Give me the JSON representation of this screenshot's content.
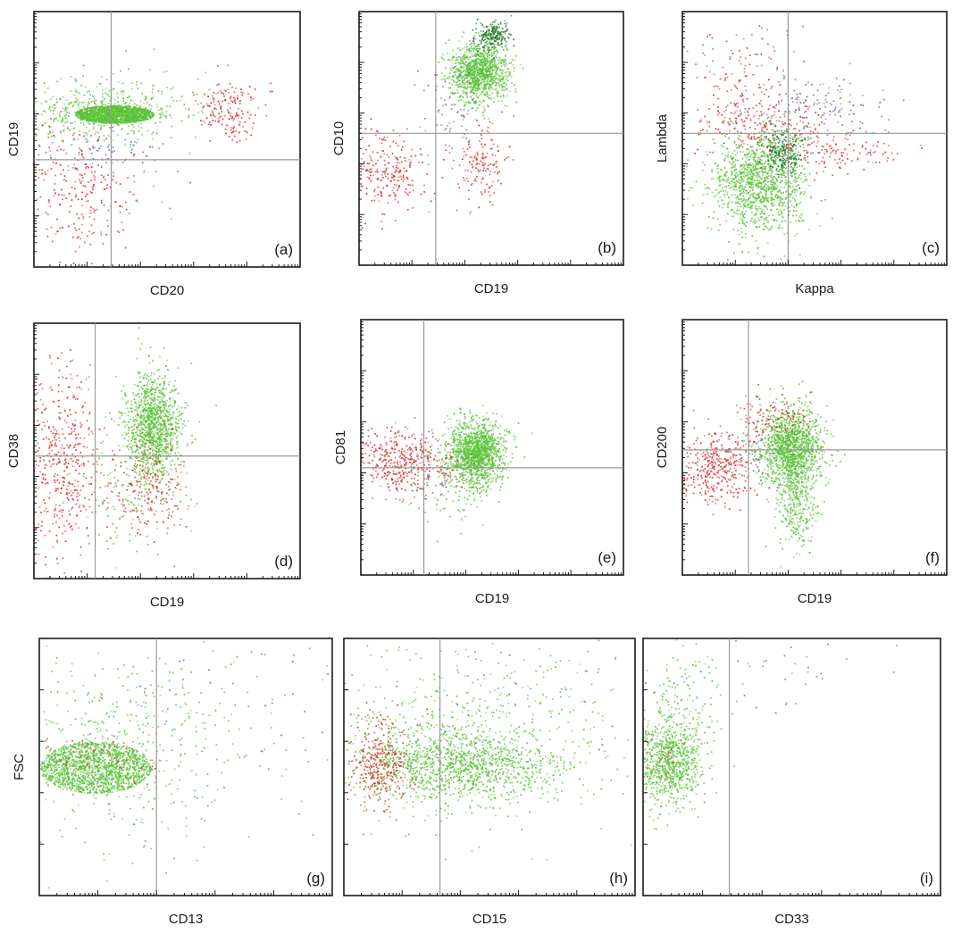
{
  "figure": {
    "colors": {
      "green": "#5cc33a",
      "dark_green": "#1f7d2c",
      "red": "#d8312e",
      "blue_violet": "#6a6aa6",
      "gate_line": "#9a9a9a"
    }
  },
  "chart_data": [
    {
      "id": "a",
      "type": "scatter",
      "panel_label": "(a)",
      "xlabel": "CD20",
      "ylabel": "CD19",
      "x_scale": "log",
      "y_scale": "log",
      "xlim": [
        0,
        1
      ],
      "ylim": [
        0,
        1
      ],
      "gate": {
        "x": 0.29,
        "y": 0.42
      },
      "populations": [
        {
          "color": "green",
          "n": 1500,
          "cx": 0.3,
          "cy": 0.6,
          "sx": 0.15,
          "sy": 0.035,
          "mode": "uniform"
        },
        {
          "color": "green",
          "n": 500,
          "cx": 0.27,
          "cy": 0.62,
          "sx": 0.15,
          "sy": 0.06,
          "mode": "normal"
        },
        {
          "color": "red",
          "n": 170,
          "cx": 0.72,
          "cy": 0.62,
          "sx": 0.06,
          "sy": 0.06,
          "mode": "normal"
        },
        {
          "color": "red",
          "n": 300,
          "cx": 0.15,
          "cy": 0.3,
          "sx": 0.14,
          "sy": 0.13,
          "mode": "normal"
        },
        {
          "color": "blue_violet",
          "n": 60,
          "cx": 0.25,
          "cy": 0.46,
          "sx": 0.1,
          "sy": 0.05,
          "mode": "normal"
        }
      ]
    },
    {
      "id": "b",
      "type": "scatter",
      "panel_label": "(b)",
      "xlabel": "CD19",
      "ylabel": "CD10",
      "x_scale": "log",
      "y_scale": "log",
      "xlim": [
        0,
        1
      ],
      "ylim": [
        0,
        1
      ],
      "gate": {
        "x": 0.29,
        "y": 0.52
      },
      "populations": [
        {
          "color": "green",
          "n": 1100,
          "cx": 0.45,
          "cy": 0.76,
          "sx": 0.055,
          "sy": 0.055,
          "mode": "normal"
        },
        {
          "color": "dark_green",
          "n": 220,
          "cx": 0.5,
          "cy": 0.91,
          "sx": 0.03,
          "sy": 0.03,
          "mode": "normal"
        },
        {
          "color": "red",
          "n": 260,
          "cx": 0.1,
          "cy": 0.38,
          "sx": 0.09,
          "sy": 0.08,
          "mode": "normal"
        },
        {
          "color": "red",
          "n": 140,
          "cx": 0.46,
          "cy": 0.4,
          "sx": 0.05,
          "sy": 0.07,
          "mode": "normal"
        },
        {
          "color": "blue_violet",
          "n": 70,
          "cx": 0.35,
          "cy": 0.62,
          "sx": 0.08,
          "sy": 0.12,
          "mode": "normal"
        }
      ]
    },
    {
      "id": "c",
      "type": "scatter",
      "panel_label": "(c)",
      "xlabel": "Kappa",
      "ylabel": "Lambda",
      "x_scale": "log",
      "y_scale": "log",
      "xlim": [
        0,
        1
      ],
      "ylim": [
        0,
        1
      ],
      "gate": {
        "x": 0.4,
        "y": 0.52
      },
      "populations": [
        {
          "color": "green",
          "n": 1200,
          "cx": 0.29,
          "cy": 0.33,
          "sx": 0.09,
          "sy": 0.1,
          "mode": "normal"
        },
        {
          "color": "dark_green",
          "n": 250,
          "cx": 0.38,
          "cy": 0.45,
          "sx": 0.04,
          "sy": 0.05,
          "mode": "normal"
        },
        {
          "color": "red",
          "n": 200,
          "cx": 0.3,
          "cy": 0.55,
          "sx": 0.15,
          "sy": 0.05,
          "mode": "normal"
        },
        {
          "color": "red",
          "n": 150,
          "cx": 0.22,
          "cy": 0.72,
          "sx": 0.12,
          "sy": 0.12,
          "mode": "normal"
        },
        {
          "color": "red",
          "n": 100,
          "cx": 0.62,
          "cy": 0.44,
          "sx": 0.1,
          "sy": 0.04,
          "mode": "normal"
        },
        {
          "color": "blue_violet",
          "n": 120,
          "cx": 0.52,
          "cy": 0.64,
          "sx": 0.12,
          "sy": 0.05,
          "mode": "normal"
        }
      ]
    },
    {
      "id": "d",
      "type": "scatter",
      "panel_label": "(d)",
      "xlabel": "CD19",
      "ylabel": "CD38",
      "x_scale": "log",
      "y_scale": "log",
      "xlim": [
        0,
        1
      ],
      "ylim": [
        0,
        1
      ],
      "gate": {
        "x": 0.23,
        "y": 0.48
      },
      "populations": [
        {
          "color": "green",
          "n": 1100,
          "cx": 0.45,
          "cy": 0.6,
          "sx": 0.05,
          "sy": 0.1,
          "mode": "normal"
        },
        {
          "color": "green",
          "n": 200,
          "cx": 0.4,
          "cy": 0.45,
          "sx": 0.1,
          "sy": 0.15,
          "mode": "normal"
        },
        {
          "color": "red",
          "n": 420,
          "cx": 0.1,
          "cy": 0.45,
          "sx": 0.07,
          "sy": 0.18,
          "mode": "normal"
        },
        {
          "color": "red",
          "n": 220,
          "cx": 0.42,
          "cy": 0.35,
          "sx": 0.07,
          "sy": 0.1,
          "mode": "normal"
        }
      ]
    },
    {
      "id": "e",
      "type": "scatter",
      "panel_label": "(e)",
      "xlabel": "CD19",
      "ylabel": "CD81",
      "x_scale": "log",
      "y_scale": "log",
      "xlim": [
        0,
        1
      ],
      "ylim": [
        0,
        1
      ],
      "gate": {
        "x": 0.24,
        "y": 0.42
      },
      "populations": [
        {
          "color": "green",
          "n": 1300,
          "cx": 0.44,
          "cy": 0.48,
          "sx": 0.05,
          "sy": 0.06,
          "mode": "normal"
        },
        {
          "color": "green",
          "n": 200,
          "cx": 0.38,
          "cy": 0.42,
          "sx": 0.1,
          "sy": 0.1,
          "mode": "normal"
        },
        {
          "color": "red",
          "n": 380,
          "cx": 0.15,
          "cy": 0.45,
          "sx": 0.09,
          "sy": 0.06,
          "mode": "normal"
        },
        {
          "color": "blue_violet",
          "n": 60,
          "cx": 0.25,
          "cy": 0.42,
          "sx": 0.08,
          "sy": 0.08,
          "mode": "normal"
        }
      ]
    },
    {
      "id": "f",
      "type": "scatter",
      "panel_label": "(f)",
      "xlabel": "CD19",
      "ylabel": "CD200",
      "x_scale": "log",
      "y_scale": "log",
      "xlim": [
        0,
        1
      ],
      "ylim": [
        0,
        1
      ],
      "gate": {
        "x": 0.25,
        "y": 0.49
      },
      "populations": [
        {
          "color": "green",
          "n": 1300,
          "cx": 0.41,
          "cy": 0.5,
          "sx": 0.06,
          "sy": 0.08,
          "mode": "normal"
        },
        {
          "color": "green",
          "n": 350,
          "cx": 0.43,
          "cy": 0.32,
          "sx": 0.04,
          "sy": 0.1,
          "mode": "normal"
        },
        {
          "color": "red",
          "n": 350,
          "cx": 0.13,
          "cy": 0.42,
          "sx": 0.07,
          "sy": 0.07,
          "mode": "normal"
        },
        {
          "color": "red",
          "n": 100,
          "cx": 0.35,
          "cy": 0.62,
          "sx": 0.07,
          "sy": 0.04,
          "mode": "normal"
        },
        {
          "color": "blue_violet",
          "n": 50,
          "cx": 0.22,
          "cy": 0.48,
          "sx": 0.07,
          "sy": 0.05,
          "mode": "normal"
        }
      ]
    },
    {
      "id": "g",
      "type": "scatter",
      "panel_label": "(g)",
      "xlabel": "CD13",
      "ylabel": "FSC",
      "x_scale": "log",
      "y_scale": "linear",
      "xlim": [
        0,
        1
      ],
      "ylim": [
        0,
        1
      ],
      "gate": {
        "x": 0.4,
        "y": null
      },
      "populations": [
        {
          "color": "green",
          "n": 1500,
          "cx": 0.19,
          "cy": 0.5,
          "sx": 0.19,
          "sy": 0.1,
          "mode": "uniform"
        },
        {
          "color": "green",
          "n": 500,
          "cx": 0.25,
          "cy": 0.6,
          "sx": 0.25,
          "sy": 0.2,
          "mode": "normal"
        },
        {
          "color": "red",
          "n": 60,
          "cx": 0.2,
          "cy": 0.55,
          "sx": 0.1,
          "sy": 0.06,
          "mode": "normal"
        },
        {
          "color": "blue_violet",
          "n": 80,
          "cx": 0.55,
          "cy": 0.7,
          "sx": 0.3,
          "sy": 0.2,
          "mode": "normal"
        }
      ]
    },
    {
      "id": "h",
      "type": "scatter",
      "panel_label": "(h)",
      "xlabel": "CD15",
      "ylabel": "",
      "x_scale": "log",
      "y_scale": "linear",
      "xlim": [
        0,
        1
      ],
      "ylim": [
        0,
        1
      ],
      "gate": {
        "x": 0.33,
        "y": null
      },
      "populations": [
        {
          "color": "green",
          "n": 1200,
          "cx": 0.38,
          "cy": 0.51,
          "sx": 0.18,
          "sy": 0.07,
          "mode": "normal"
        },
        {
          "color": "green",
          "n": 500,
          "cx": 0.4,
          "cy": 0.6,
          "sx": 0.25,
          "sy": 0.18,
          "mode": "normal"
        },
        {
          "color": "red",
          "n": 300,
          "cx": 0.12,
          "cy": 0.52,
          "sx": 0.05,
          "sy": 0.09,
          "mode": "normal"
        },
        {
          "color": "blue_violet",
          "n": 60,
          "cx": 0.6,
          "cy": 0.8,
          "sx": 0.3,
          "sy": 0.15,
          "mode": "normal"
        }
      ]
    },
    {
      "id": "i",
      "type": "scatter",
      "panel_label": "(i)",
      "xlabel": "CD33",
      "ylabel": "",
      "x_scale": "log",
      "y_scale": "linear",
      "xlim": [
        0,
        1
      ],
      "ylim": [
        0,
        1
      ],
      "gate": {
        "x": 0.29,
        "y": null
      },
      "populations": [
        {
          "color": "green",
          "n": 800,
          "cx": 0.08,
          "cy": 0.52,
          "sx": 0.06,
          "sy": 0.08,
          "mode": "normal"
        },
        {
          "color": "green",
          "n": 200,
          "cx": 0.12,
          "cy": 0.7,
          "sx": 0.06,
          "sy": 0.15,
          "mode": "normal"
        },
        {
          "color": "red",
          "n": 20,
          "cx": 0.06,
          "cy": 0.55,
          "sx": 0.04,
          "sy": 0.05,
          "mode": "normal"
        },
        {
          "color": "blue_violet",
          "n": 40,
          "cx": 0.45,
          "cy": 0.85,
          "sx": 0.2,
          "sy": 0.08,
          "mode": "normal"
        }
      ]
    }
  ]
}
